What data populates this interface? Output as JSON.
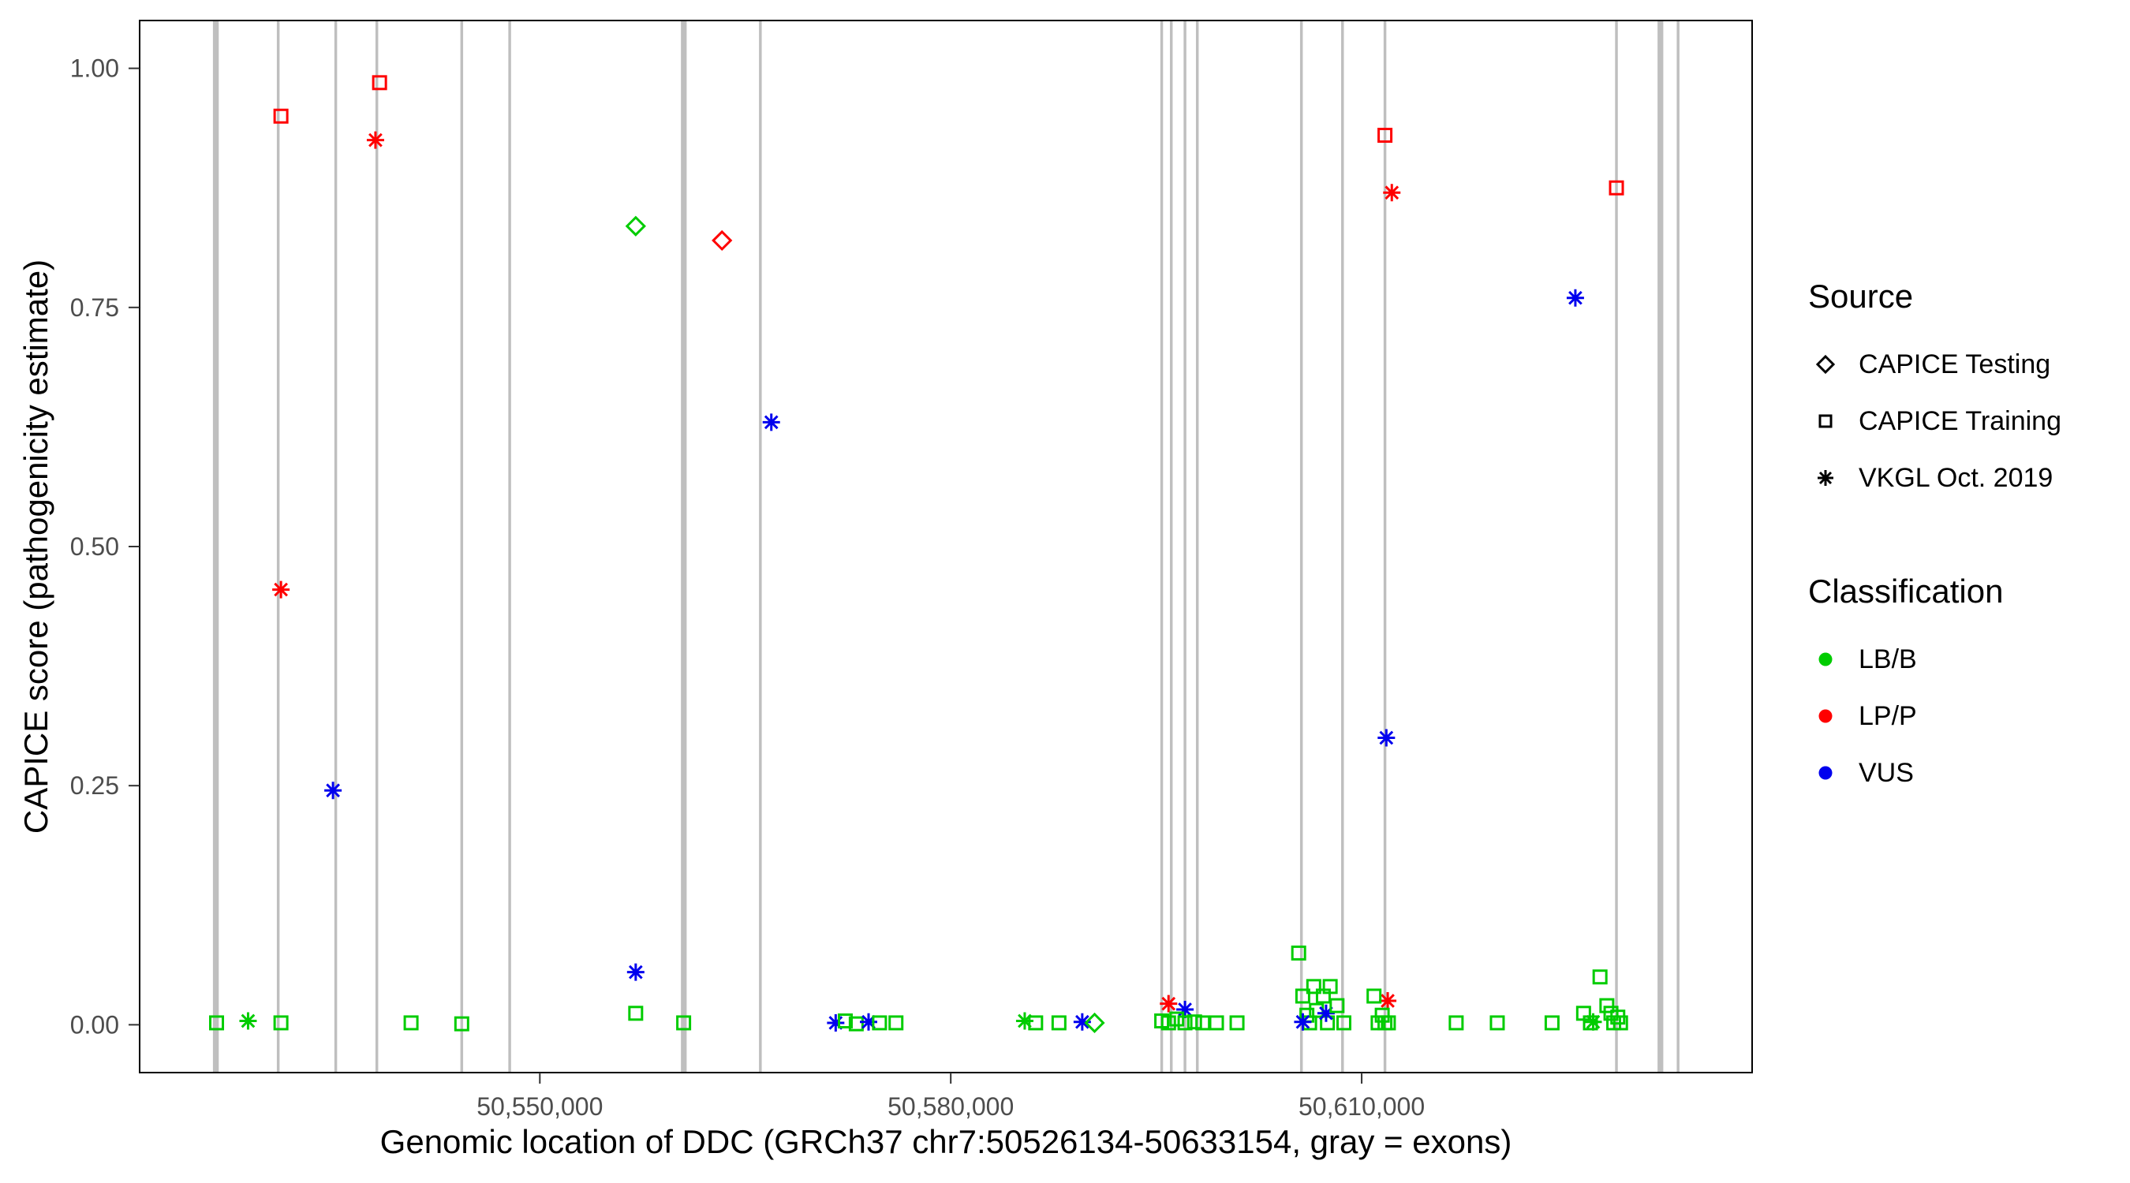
{
  "figure": {
    "x_axis_title": "Genomic location of DDC (GRCh37 chr7:50526134-50633154, gray = exons)",
    "y_axis_title": "CAPICE score (pathogenicity estimate)"
  },
  "legend": {
    "source": {
      "title": "Source",
      "items": [
        {
          "label": "CAPICE Testing",
          "shape": "diamond"
        },
        {
          "label": "CAPICE Training",
          "shape": "square"
        },
        {
          "label": "VKGL Oct. 2019",
          "shape": "asterisk"
        }
      ]
    },
    "classification": {
      "title": "Classification",
      "items": [
        {
          "label": "LB/B",
          "key": "LB",
          "color": "#00CC00"
        },
        {
          "label": "LP/P",
          "key": "LP",
          "color": "#FF0000"
        },
        {
          "label": "VUS",
          "key": "VUS",
          "color": "#0000EE"
        }
      ]
    }
  },
  "chart_data": {
    "type": "scatter",
    "title": "",
    "xlabel": "Genomic location of DDC (GRCh37 chr7:50526134-50633154, gray = exons)",
    "ylabel": "CAPICE score (pathogenicity estimate)",
    "x_range": [
      50526134,
      50633154
    ],
    "y_range": [
      0,
      1
    ],
    "grid": false,
    "legend_position": "right",
    "x_ticks": [
      {
        "value": 50550000,
        "label": "50,550,000"
      },
      {
        "value": 50580000,
        "label": "50,580,000"
      },
      {
        "value": 50610000,
        "label": "50,610,000"
      }
    ],
    "y_ticks": [
      {
        "value": 0.0,
        "label": "0.00"
      },
      {
        "value": 0.25,
        "label": "0.25"
      },
      {
        "value": 0.5,
        "label": "0.50"
      },
      {
        "value": 0.75,
        "label": "0.75"
      },
      {
        "value": 1.0,
        "label": "1.00"
      }
    ],
    "colors": {
      "LB": "#00CC00",
      "LP": "#FF0000",
      "VUS": "#0000EE"
    },
    "exon_color": "#BFBFBF",
    "exons": [
      {
        "start": 50526134,
        "end": 50526560
      },
      {
        "start": 50530800,
        "end": 50531000
      },
      {
        "start": 50535000,
        "end": 50535200
      },
      {
        "start": 50538000,
        "end": 50538200
      },
      {
        "start": 50544200,
        "end": 50544400
      },
      {
        "start": 50547700,
        "end": 50547900
      },
      {
        "start": 50560300,
        "end": 50560720
      },
      {
        "start": 50566000,
        "end": 50566200
      },
      {
        "start": 50595300,
        "end": 50595500
      },
      {
        "start": 50596000,
        "end": 50596200
      },
      {
        "start": 50597000,
        "end": 50597200
      },
      {
        "start": 50597900,
        "end": 50598100
      },
      {
        "start": 50605500,
        "end": 50605700
      },
      {
        "start": 50608500,
        "end": 50608700
      },
      {
        "start": 50611600,
        "end": 50611800
      },
      {
        "start": 50628500,
        "end": 50628700
      },
      {
        "start": 50631600,
        "end": 50632020
      },
      {
        "start": 50633000,
        "end": 50633200
      }
    ],
    "points": [
      {
        "x": 50531100,
        "y": 0.95,
        "source": "training",
        "cls": "LP"
      },
      {
        "x": 50538300,
        "y": 0.985,
        "source": "training",
        "cls": "LP"
      },
      {
        "x": 50538000,
        "y": 0.925,
        "source": "vkgl",
        "cls": "LP"
      },
      {
        "x": 50531100,
        "y": 0.455,
        "source": "vkgl",
        "cls": "LP"
      },
      {
        "x": 50534900,
        "y": 0.245,
        "source": "vkgl",
        "cls": "VUS"
      },
      {
        "x": 50557000,
        "y": 0.835,
        "source": "testing",
        "cls": "LB"
      },
      {
        "x": 50563300,
        "y": 0.82,
        "source": "testing",
        "cls": "LP"
      },
      {
        "x": 50566900,
        "y": 0.63,
        "source": "vkgl",
        "cls": "VUS"
      },
      {
        "x": 50557000,
        "y": 0.055,
        "source": "vkgl",
        "cls": "VUS"
      },
      {
        "x": 50557000,
        "y": 0.012,
        "source": "training",
        "cls": "LB"
      },
      {
        "x": 50611700,
        "y": 0.93,
        "source": "training",
        "cls": "LP"
      },
      {
        "x": 50612200,
        "y": 0.87,
        "source": "vkgl",
        "cls": "LP"
      },
      {
        "x": 50625600,
        "y": 0.76,
        "source": "vkgl",
        "cls": "VUS"
      },
      {
        "x": 50628600,
        "y": 0.875,
        "source": "training",
        "cls": "LP"
      },
      {
        "x": 50611800,
        "y": 0.3,
        "source": "vkgl",
        "cls": "VUS"
      },
      {
        "x": 50611900,
        "y": 0.025,
        "source": "vkgl",
        "cls": "LP"
      },
      {
        "x": 50595900,
        "y": 0.022,
        "source": "vkgl",
        "cls": "LP"
      },
      {
        "x": 50597100,
        "y": 0.016,
        "source": "vkgl",
        "cls": "VUS"
      },
      {
        "x": 50526400,
        "y": 0.002,
        "source": "training",
        "cls": "LB"
      },
      {
        "x": 50528700,
        "y": 0.004,
        "source": "vkgl",
        "cls": "LB"
      },
      {
        "x": 50531100,
        "y": 0.002,
        "source": "training",
        "cls": "LB"
      },
      {
        "x": 50540600,
        "y": 0.002,
        "source": "training",
        "cls": "LB"
      },
      {
        "x": 50544300,
        "y": 0.001,
        "source": "training",
        "cls": "LB"
      },
      {
        "x": 50560500,
        "y": 0.002,
        "source": "training",
        "cls": "LB"
      },
      {
        "x": 50571600,
        "y": 0.002,
        "source": "vkgl",
        "cls": "VUS"
      },
      {
        "x": 50572300,
        "y": 0.004,
        "source": "training",
        "cls": "LB"
      },
      {
        "x": 50573100,
        "y": 0.001,
        "source": "training",
        "cls": "LB"
      },
      {
        "x": 50574000,
        "y": 0.003,
        "source": "vkgl",
        "cls": "VUS"
      },
      {
        "x": 50574800,
        "y": 0.002,
        "source": "training",
        "cls": "LB"
      },
      {
        "x": 50576000,
        "y": 0.002,
        "source": "training",
        "cls": "LB"
      },
      {
        "x": 50585400,
        "y": 0.004,
        "source": "vkgl",
        "cls": "LB"
      },
      {
        "x": 50586200,
        "y": 0.002,
        "source": "training",
        "cls": "LB"
      },
      {
        "x": 50587900,
        "y": 0.002,
        "source": "training",
        "cls": "LB"
      },
      {
        "x": 50589600,
        "y": 0.003,
        "source": "vkgl",
        "cls": "VUS"
      },
      {
        "x": 50590500,
        "y": 0.002,
        "source": "testing",
        "cls": "LB"
      },
      {
        "x": 50595400,
        "y": 0.004,
        "source": "training",
        "cls": "LB"
      },
      {
        "x": 50595900,
        "y": 0.002,
        "source": "training",
        "cls": "LB"
      },
      {
        "x": 50596500,
        "y": 0.006,
        "source": "training",
        "cls": "LB"
      },
      {
        "x": 50597100,
        "y": 0.002,
        "source": "training",
        "cls": "LB"
      },
      {
        "x": 50597800,
        "y": 0.003,
        "source": "training",
        "cls": "LB"
      },
      {
        "x": 50598400,
        "y": 0.002,
        "source": "training",
        "cls": "LB"
      },
      {
        "x": 50599400,
        "y": 0.002,
        "source": "training",
        "cls": "LB"
      },
      {
        "x": 50600900,
        "y": 0.002,
        "source": "training",
        "cls": "LB"
      },
      {
        "x": 50605400,
        "y": 0.075,
        "source": "training",
        "cls": "LB"
      },
      {
        "x": 50605700,
        "y": 0.03,
        "source": "training",
        "cls": "LB"
      },
      {
        "x": 50606000,
        "y": 0.01,
        "source": "training",
        "cls": "LB"
      },
      {
        "x": 50606200,
        "y": 0.002,
        "source": "training",
        "cls": "LB"
      },
      {
        "x": 50606500,
        "y": 0.04,
        "source": "training",
        "cls": "LB"
      },
      {
        "x": 50606700,
        "y": 0.015,
        "source": "training",
        "cls": "LB"
      },
      {
        "x": 50607200,
        "y": 0.03,
        "source": "training",
        "cls": "LB"
      },
      {
        "x": 50607500,
        "y": 0.002,
        "source": "training",
        "cls": "LB"
      },
      {
        "x": 50607700,
        "y": 0.04,
        "source": "training",
        "cls": "LB"
      },
      {
        "x": 50605700,
        "y": 0.003,
        "source": "vkgl",
        "cls": "VUS"
      },
      {
        "x": 50607400,
        "y": 0.012,
        "source": "vkgl",
        "cls": "VUS"
      },
      {
        "x": 50608200,
        "y": 0.02,
        "source": "training",
        "cls": "LB"
      },
      {
        "x": 50608700,
        "y": 0.002,
        "source": "training",
        "cls": "LB"
      },
      {
        "x": 50610900,
        "y": 0.03,
        "source": "training",
        "cls": "LB"
      },
      {
        "x": 50611200,
        "y": 0.002,
        "source": "training",
        "cls": "LB"
      },
      {
        "x": 50611500,
        "y": 0.01,
        "source": "training",
        "cls": "LB"
      },
      {
        "x": 50611700,
        "y": 0.002,
        "source": "training",
        "cls": "LB"
      },
      {
        "x": 50611950,
        "y": 0.002,
        "source": "training",
        "cls": "LB"
      },
      {
        "x": 50616900,
        "y": 0.002,
        "source": "training",
        "cls": "LB"
      },
      {
        "x": 50619900,
        "y": 0.002,
        "source": "training",
        "cls": "LB"
      },
      {
        "x": 50623900,
        "y": 0.002,
        "source": "training",
        "cls": "LB"
      },
      {
        "x": 50626200,
        "y": 0.012,
        "source": "training",
        "cls": "LB"
      },
      {
        "x": 50626700,
        "y": 0.002,
        "source": "training",
        "cls": "LB"
      },
      {
        "x": 50627400,
        "y": 0.05,
        "source": "training",
        "cls": "LB"
      },
      {
        "x": 50627900,
        "y": 0.02,
        "source": "training",
        "cls": "LB"
      },
      {
        "x": 50628200,
        "y": 0.012,
        "source": "training",
        "cls": "LB"
      },
      {
        "x": 50628400,
        "y": 0.002,
        "source": "training",
        "cls": "LB"
      },
      {
        "x": 50626900,
        "y": 0.003,
        "source": "vkgl",
        "cls": "LB"
      },
      {
        "x": 50628700,
        "y": 0.008,
        "source": "training",
        "cls": "LB"
      },
      {
        "x": 50628900,
        "y": 0.002,
        "source": "training",
        "cls": "LB"
      }
    ]
  }
}
